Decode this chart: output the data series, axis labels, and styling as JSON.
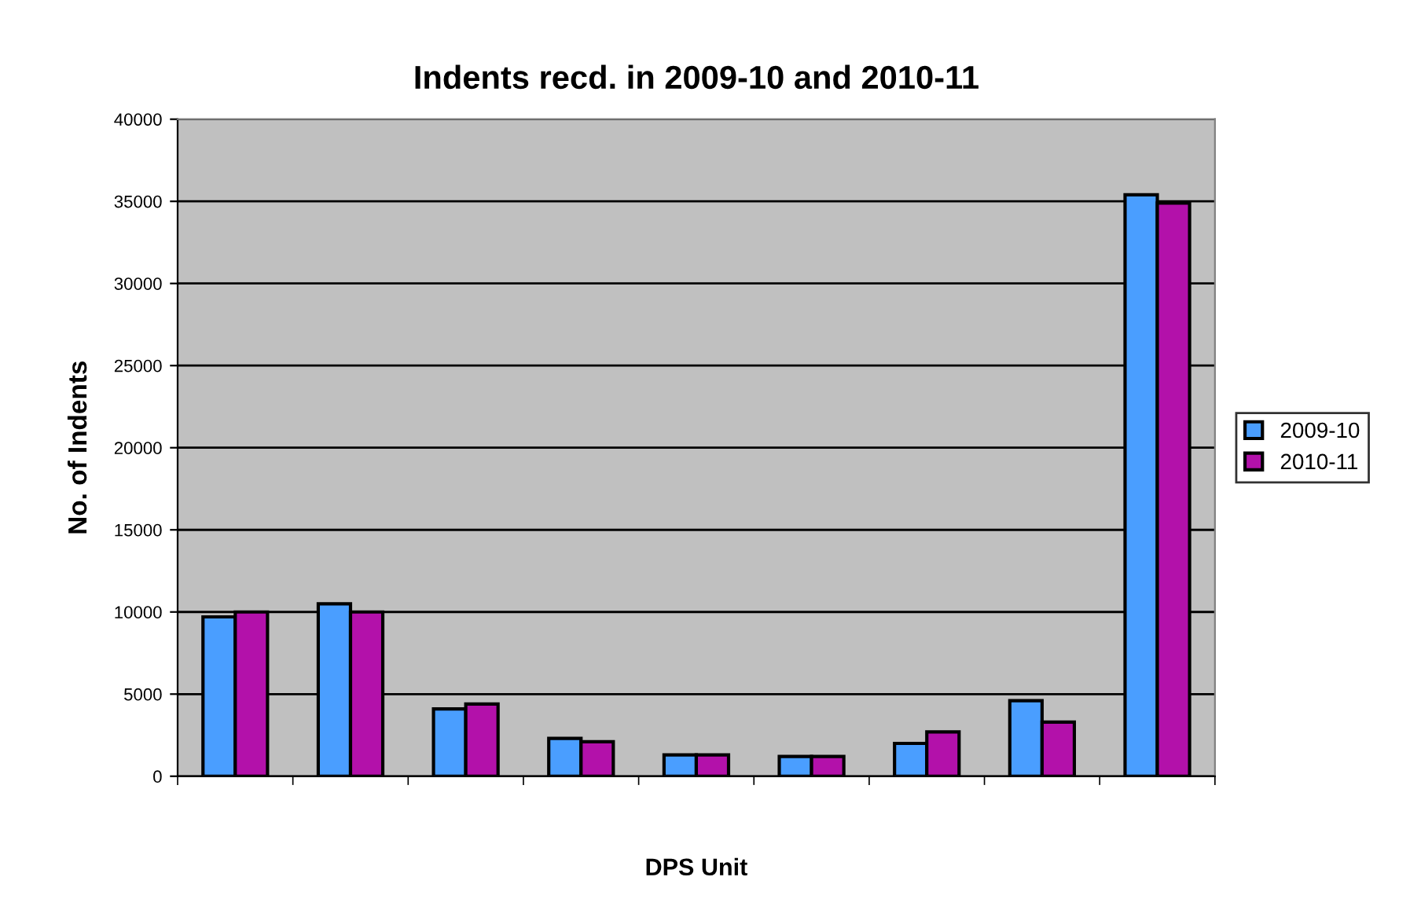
{
  "chart_data": {
    "type": "bar",
    "title": "Indents recd. in 2009-10 and 2010-11",
    "xlabel": "DPS Unit",
    "ylabel": "No. of Indents",
    "categories": [
      null,
      null,
      null,
      null,
      null,
      null,
      null,
      null,
      null
    ],
    "series": [
      {
        "name": "2009-10",
        "color": "#4a9eff",
        "values": [
          9700,
          10500,
          4100,
          2300,
          1300,
          1200,
          2000,
          4600,
          35400
        ]
      },
      {
        "name": "2010-11",
        "color": "#b311aa",
        "values": [
          10000,
          10000,
          4400,
          2100,
          1300,
          1200,
          2700,
          3300,
          34900
        ]
      }
    ],
    "ylim": [
      0,
      40000
    ],
    "yticks": [
      0,
      5000,
      10000,
      15000,
      20000,
      25000,
      30000,
      35000,
      40000
    ],
    "grid": "y",
    "legend": "right",
    "tick_labels": "y"
  }
}
